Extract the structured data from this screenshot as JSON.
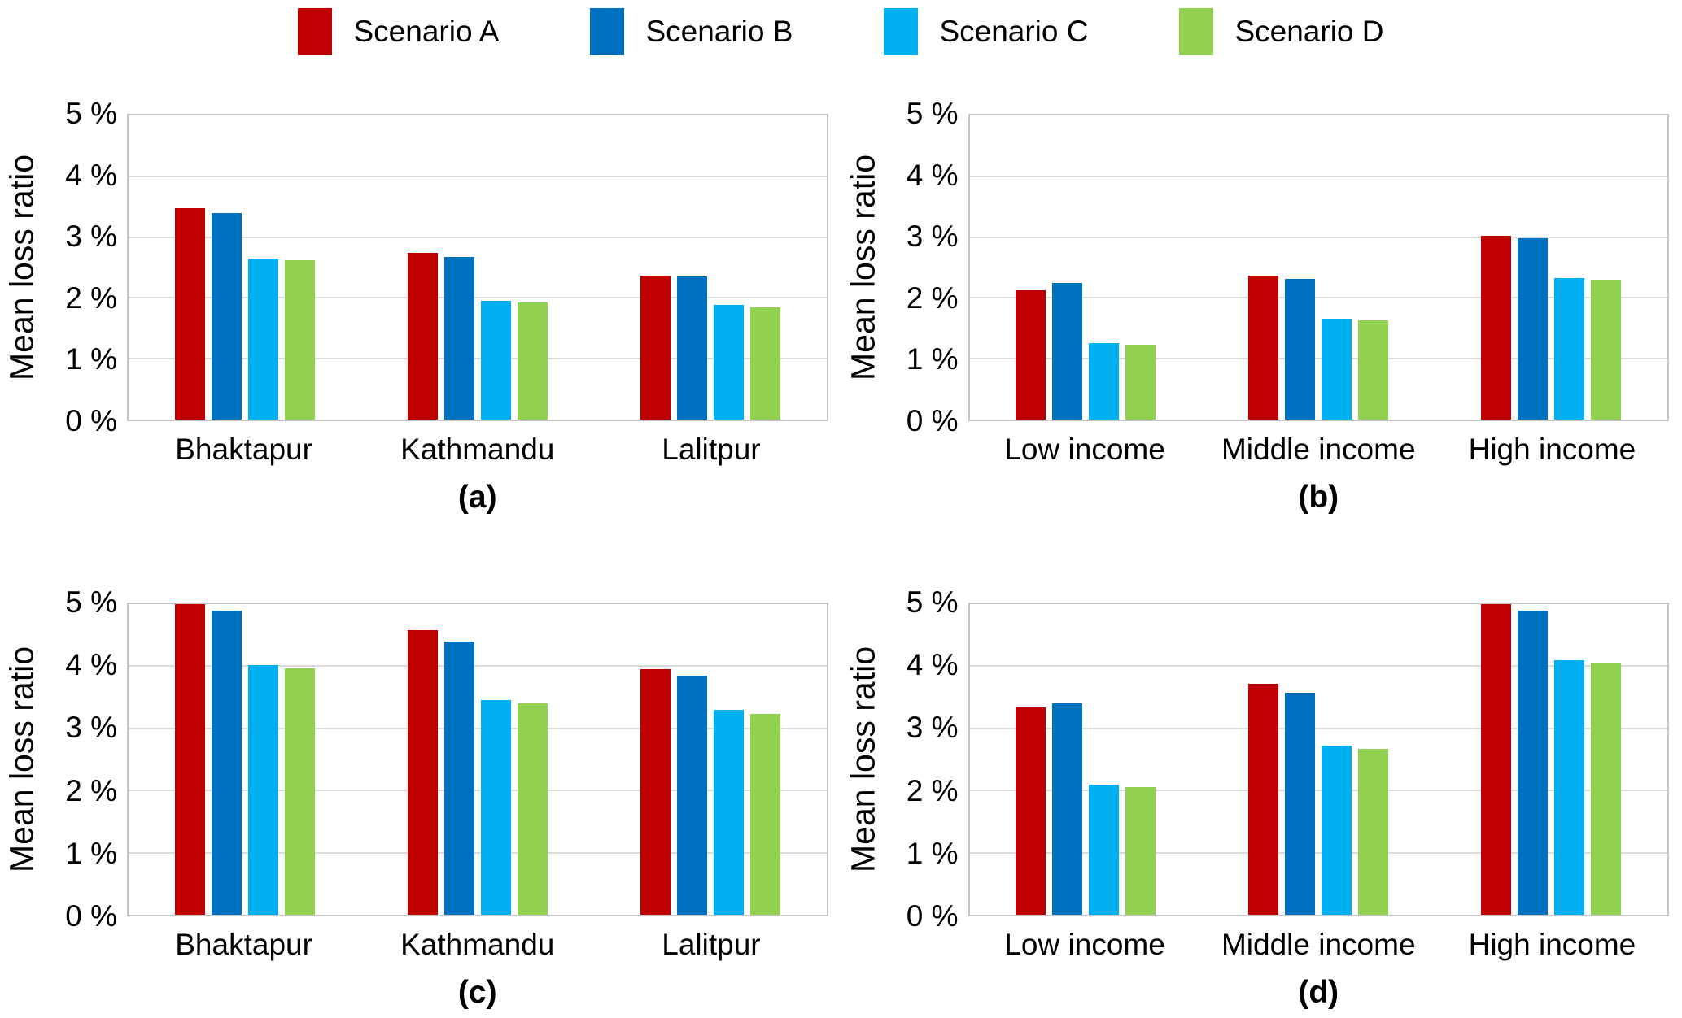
{
  "figure": {
    "background": "#FFFFFF",
    "legend": {
      "items": [
        {
          "label": "Scenario A",
          "color": "#C00000"
        },
        {
          "label": "Scenario B",
          "color": "#0070C0"
        },
        {
          "label": "Scenario C",
          "color": "#00B0F0"
        },
        {
          "label": "Scenario D",
          "color": "#92D050"
        }
      ]
    },
    "y_axis": {
      "label": "Mean loss ratio",
      "tick_labels": [
        "0 %",
        "1 %",
        "2 %",
        "3 %",
        "4 %",
        "5 %"
      ],
      "min": 0,
      "max": 5
    },
    "style_colors": {
      "gridline": "#DCDCDC",
      "plot_border": "#C6C6C6",
      "text": "#000000"
    }
  },
  "chart_data": [
    {
      "type": "bar",
      "panel_label": "(a)",
      "ylabel": "Mean loss ratio",
      "ylim": [
        0,
        5
      ],
      "grid": "horizontal",
      "legend_position": "shared-top",
      "categories": [
        "Bhaktapur",
        "Kathmandu",
        "Lalitpur"
      ],
      "series": [
        {
          "name": "Scenario A",
          "color": "#C00000",
          "values": [
            3.48,
            2.74,
            2.37
          ]
        },
        {
          "name": "Scenario B",
          "color": "#0070C0",
          "values": [
            3.4,
            2.68,
            2.35
          ]
        },
        {
          "name": "Scenario C",
          "color": "#00B0F0",
          "values": [
            2.65,
            1.95,
            1.88
          ]
        },
        {
          "name": "Scenario D",
          "color": "#92D050",
          "values": [
            2.62,
            1.92,
            1.85
          ]
        }
      ]
    },
    {
      "type": "bar",
      "panel_label": "(b)",
      "ylabel": "Mean loss ratio",
      "ylim": [
        0,
        5
      ],
      "grid": "horizontal",
      "legend_position": "shared-top",
      "categories": [
        "Low income",
        "Middle income",
        "High income"
      ],
      "series": [
        {
          "name": "Scenario A",
          "color": "#C00000",
          "values": [
            2.13,
            2.37,
            3.02
          ]
        },
        {
          "name": "Scenario B",
          "color": "#0070C0",
          "values": [
            2.24,
            2.31,
            2.98
          ]
        },
        {
          "name": "Scenario C",
          "color": "#00B0F0",
          "values": [
            1.26,
            1.66,
            2.33
          ]
        },
        {
          "name": "Scenario D",
          "color": "#92D050",
          "values": [
            1.23,
            1.63,
            2.3
          ]
        }
      ]
    },
    {
      "type": "bar",
      "panel_label": "(c)",
      "ylabel": "Mean loss ratio",
      "ylim": [
        0,
        5
      ],
      "grid": "horizontal",
      "legend_position": "shared-top",
      "categories": [
        "Bhaktapur",
        "Kathmandu",
        "Lalitpur"
      ],
      "series": [
        {
          "name": "Scenario A",
          "color": "#C00000",
          "values": [
            5.0,
            4.58,
            3.95
          ]
        },
        {
          "name": "Scenario B",
          "color": "#0070C0",
          "values": [
            4.9,
            4.4,
            3.85
          ]
        },
        {
          "name": "Scenario C",
          "color": "#00B0F0",
          "values": [
            4.02,
            3.45,
            3.3
          ]
        },
        {
          "name": "Scenario D",
          "color": "#92D050",
          "values": [
            3.96,
            3.4,
            3.23
          ]
        }
      ]
    },
    {
      "type": "bar",
      "panel_label": "(d)",
      "ylabel": "Mean loss ratio",
      "ylim": [
        0,
        5
      ],
      "grid": "horizontal",
      "legend_position": "shared-top",
      "categories": [
        "Low income",
        "Middle income",
        "High income"
      ],
      "series": [
        {
          "name": "Scenario A",
          "color": "#C00000",
          "values": [
            3.34,
            3.72,
            5.0
          ]
        },
        {
          "name": "Scenario B",
          "color": "#0070C0",
          "values": [
            3.4,
            3.58,
            4.9
          ]
        },
        {
          "name": "Scenario C",
          "color": "#00B0F0",
          "values": [
            2.09,
            2.72,
            4.1
          ]
        },
        {
          "name": "Scenario D",
          "color": "#92D050",
          "values": [
            2.06,
            2.67,
            4.04
          ]
        }
      ]
    }
  ]
}
